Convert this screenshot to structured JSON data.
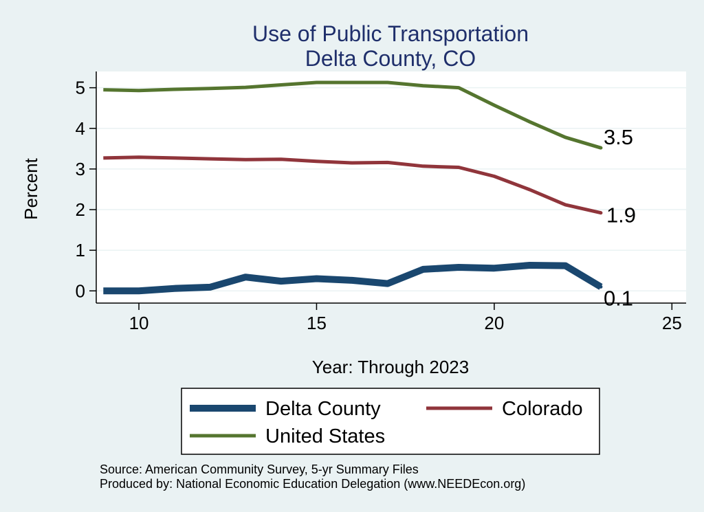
{
  "chart_data": {
    "type": "line",
    "title": "Use of Public Transportation",
    "subtitle": "Delta County, CO",
    "xlabel": "Year: Through 2023",
    "ylabel": "Percent",
    "xlim": [
      8.8,
      25.4
    ],
    "ylim": [
      -0.3,
      5.4
    ],
    "xticks": [
      "10",
      "15",
      "20",
      "25"
    ],
    "yticks": [
      "0",
      "1",
      "2",
      "3",
      "4",
      "5"
    ],
    "grid": true,
    "x": [
      9,
      10,
      11,
      12,
      13,
      14,
      15,
      16,
      17,
      18,
      19,
      20,
      21,
      22,
      23
    ],
    "series": [
      {
        "name": "Delta County",
        "color": "#1a476f",
        "values": [
          0.0,
          0.0,
          0.06,
          0.09,
          0.34,
          0.24,
          0.3,
          0.26,
          0.18,
          0.53,
          0.58,
          0.56,
          0.63,
          0.62,
          0.1
        ],
        "end_label": "0.1"
      },
      {
        "name": "Colorado",
        "color": "#90353b",
        "values": [
          3.27,
          3.29,
          3.27,
          3.25,
          3.23,
          3.24,
          3.19,
          3.15,
          3.16,
          3.07,
          3.04,
          2.82,
          2.49,
          2.12,
          1.92
        ],
        "end_label": "1.9"
      },
      {
        "name": "United States",
        "color": "#55752f",
        "values": [
          4.95,
          4.93,
          4.96,
          4.98,
          5.01,
          5.07,
          5.13,
          5.13,
          5.13,
          5.05,
          5.0,
          4.57,
          4.16,
          3.78,
          3.52
        ],
        "end_label": "3.5"
      }
    ],
    "legend": {
      "position": "bottom",
      "entries": [
        "Delta County",
        "Colorado",
        "United States"
      ]
    },
    "notes": [
      "Source: American Community Survey, 5-yr Summary Files",
      "Produced by: National Economic Education Delegation (www.NEEDEcon.org)"
    ]
  }
}
